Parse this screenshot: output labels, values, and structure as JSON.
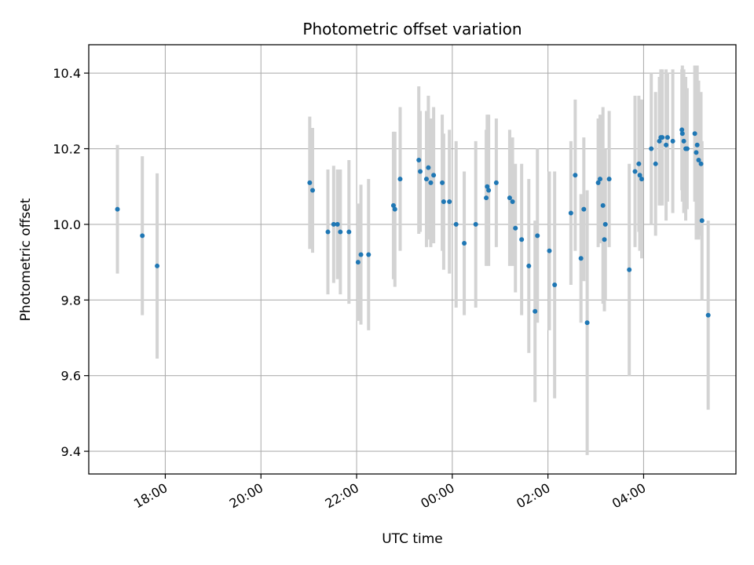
{
  "chart_data": {
    "type": "scatter",
    "title": "Photometric offset variation",
    "xlabel": "UTC time",
    "ylabel": "Photometric offset",
    "x_ticks": [
      "18:00",
      "20:00",
      "22:00",
      "00:00",
      "02:00",
      "04:00"
    ],
    "y_ticks": [
      "9.4",
      "9.6",
      "9.8",
      "10.0",
      "10.2",
      "10.4"
    ],
    "x_unit": "hours since 18:00 UTC",
    "xlim": [
      -1.6,
      11.93
    ],
    "ylim": [
      9.34,
      10.475
    ],
    "grid": true,
    "colors": {
      "marker": "#1f77b4",
      "errorbar": "#d3d3d3",
      "grid": "#b0b0b0"
    },
    "points": [
      [
        -1.0,
        10.04,
        0.17
      ],
      [
        -0.48,
        9.97,
        0.21
      ],
      [
        -0.17,
        9.89,
        0.245
      ],
      [
        3.02,
        10.11,
        0.175
      ],
      [
        3.08,
        10.09,
        0.165
      ],
      [
        3.4,
        9.98,
        0.165
      ],
      [
        3.52,
        10.0,
        0.155
      ],
      [
        3.6,
        10.0,
        0.145
      ],
      [
        3.66,
        9.98,
        0.165
      ],
      [
        3.84,
        9.98,
        0.19
      ],
      [
        4.03,
        9.9,
        0.155
      ],
      [
        4.09,
        9.92,
        0.185
      ],
      [
        4.25,
        9.92,
        0.2
      ],
      [
        4.77,
        10.05,
        0.195
      ],
      [
        4.8,
        10.04,
        0.205
      ],
      [
        4.91,
        10.12,
        0.19
      ],
      [
        5.3,
        10.17,
        0.195
      ],
      [
        5.33,
        10.14,
        0.16
      ],
      [
        5.46,
        10.12,
        0.18
      ],
      [
        5.5,
        10.15,
        0.19
      ],
      [
        5.55,
        10.11,
        0.17
      ],
      [
        5.61,
        10.13,
        0.18
      ],
      [
        5.79,
        10.11,
        0.18
      ],
      [
        5.82,
        10.06,
        0.18
      ],
      [
        5.94,
        10.06,
        0.19
      ],
      [
        6.08,
        10.0,
        0.22
      ],
      [
        6.25,
        9.95,
        0.19
      ],
      [
        6.49,
        10.0,
        0.22
      ],
      [
        6.71,
        10.07,
        0.18
      ],
      [
        6.73,
        10.1,
        0.19
      ],
      [
        6.76,
        10.09,
        0.2
      ],
      [
        6.92,
        10.11,
        0.17
      ],
      [
        7.2,
        10.07,
        0.18
      ],
      [
        7.26,
        10.06,
        0.17
      ],
      [
        7.32,
        9.99,
        0.17
      ],
      [
        7.45,
        9.96,
        0.2
      ],
      [
        7.6,
        9.89,
        0.23
      ],
      [
        7.73,
        9.77,
        0.24
      ],
      [
        7.78,
        9.97,
        0.23
      ],
      [
        8.03,
        9.93,
        0.21
      ],
      [
        8.14,
        9.84,
        0.3
      ],
      [
        8.48,
        10.03,
        0.19
      ],
      [
        8.57,
        10.13,
        0.2
      ],
      [
        8.69,
        9.91,
        0.17
      ],
      [
        8.75,
        10.04,
        0.19
      ],
      [
        8.82,
        9.74,
        0.35
      ],
      [
        9.05,
        10.11,
        0.17
      ],
      [
        9.09,
        10.12,
        0.17
      ],
      [
        9.15,
        10.05,
        0.26
      ],
      [
        9.18,
        9.96,
        0.19
      ],
      [
        9.2,
        10.0,
        0.2
      ],
      [
        9.28,
        10.12,
        0.18
      ],
      [
        9.7,
        9.88,
        0.28
      ],
      [
        9.82,
        10.14,
        0.2
      ],
      [
        9.9,
        10.16,
        0.18
      ],
      [
        9.92,
        10.13,
        0.2
      ],
      [
        9.96,
        10.12,
        0.21
      ],
      [
        10.16,
        10.2,
        0.2
      ],
      [
        10.25,
        10.16,
        0.19
      ],
      [
        10.33,
        10.22,
        0.17
      ],
      [
        10.36,
        10.23,
        0.18
      ],
      [
        10.39,
        10.23,
        0.18
      ],
      [
        10.47,
        10.21,
        0.2
      ],
      [
        10.5,
        10.23,
        0.17
      ],
      [
        10.61,
        10.22,
        0.19
      ],
      [
        10.8,
        10.25,
        0.16
      ],
      [
        10.81,
        10.24,
        0.18
      ],
      [
        10.84,
        10.22,
        0.19
      ],
      [
        10.88,
        10.2,
        0.19
      ],
      [
        10.91,
        10.2,
        0.16
      ],
      [
        11.07,
        10.24,
        0.18
      ],
      [
        11.1,
        10.19,
        0.23
      ],
      [
        11.12,
        10.21,
        0.21
      ],
      [
        11.15,
        10.17,
        0.21
      ],
      [
        11.2,
        10.16,
        0.19
      ],
      [
        11.22,
        10.01,
        0.21
      ],
      [
        11.35,
        9.76,
        0.25
      ]
    ]
  }
}
